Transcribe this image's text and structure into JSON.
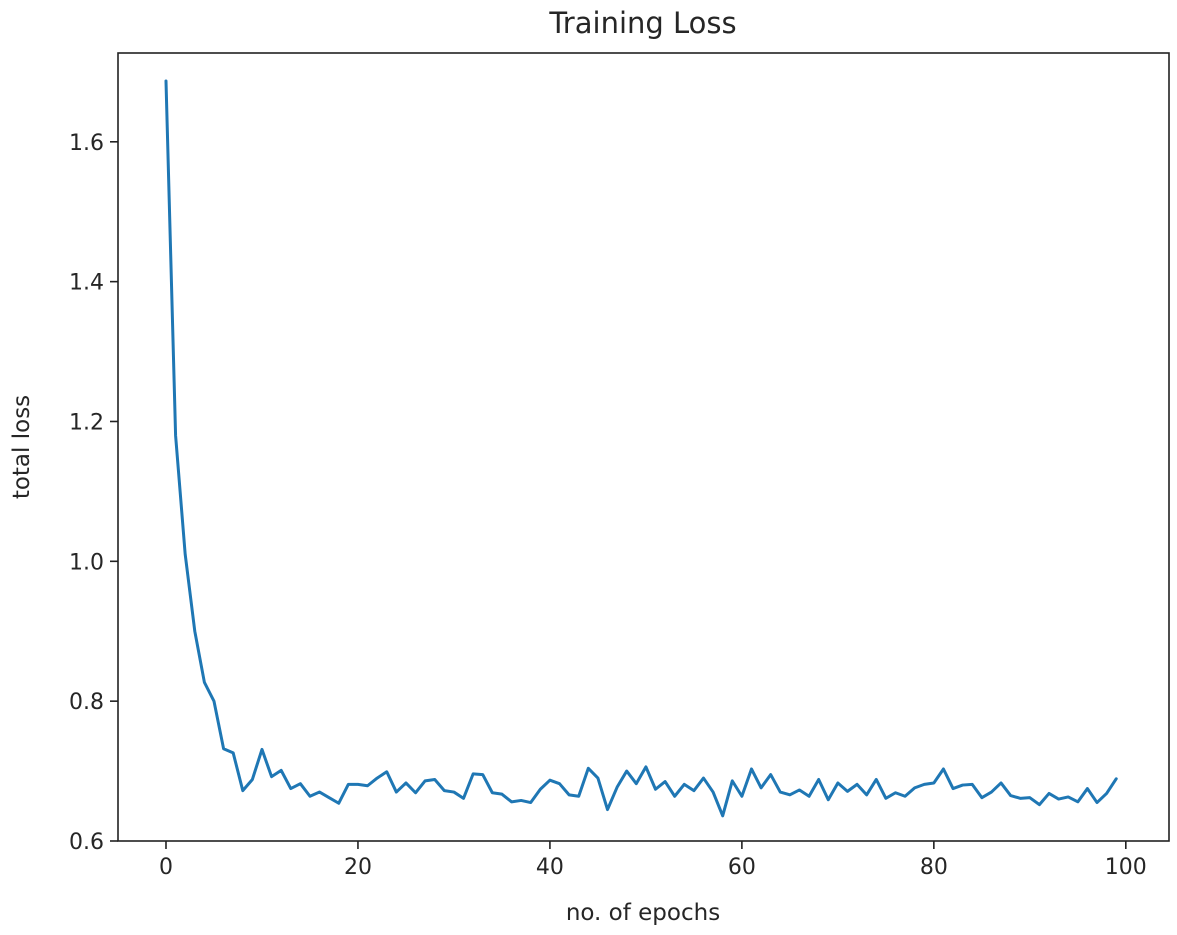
{
  "chart_data": {
    "type": "line",
    "title": "Training Loss",
    "xlabel": "no. of epochs",
    "ylabel": "total loss",
    "xlim": [
      -5,
      104.5
    ],
    "ylim": [
      0.6,
      1.727
    ],
    "xticks": [
      0,
      20,
      40,
      60,
      80,
      100
    ],
    "xtick_labels": [
      "0",
      "20",
      "40",
      "60",
      "80",
      "100"
    ],
    "yticks": [
      0.6,
      0.8,
      1.0,
      1.2,
      1.4,
      1.6
    ],
    "ytick_labels": [
      "0.6",
      "0.8",
      "1.0",
      "1.2",
      "1.4",
      "1.6"
    ],
    "grid": false,
    "series_color": "#1f77b4",
    "series": [
      {
        "x": [
          0,
          1,
          2,
          3,
          4,
          5,
          6,
          7,
          8,
          9,
          10,
          11,
          12,
          13,
          14,
          15,
          16,
          17,
          18,
          19,
          20,
          21,
          22,
          23,
          24,
          25,
          26,
          27,
          28,
          29,
          30,
          31,
          32,
          33,
          34,
          35,
          36,
          37,
          38,
          39,
          40,
          41,
          42,
          43,
          44,
          45,
          46,
          47,
          48,
          49,
          50,
          51,
          52,
          53,
          54,
          55,
          56,
          57,
          58,
          59,
          60,
          61,
          62,
          63,
          64,
          65,
          66,
          67,
          68,
          69,
          70,
          71,
          72,
          73,
          74,
          75,
          76,
          77,
          78,
          79,
          80,
          81,
          82,
          83,
          84,
          85,
          86,
          87,
          88,
          89,
          90,
          91,
          92,
          93,
          94,
          95,
          96,
          97,
          98,
          99
        ],
        "values": [
          1.687,
          1.18,
          1.01,
          0.9,
          0.827,
          0.8,
          0.732,
          0.726,
          0.672,
          0.688,
          0.731,
          0.692,
          0.701,
          0.675,
          0.682,
          0.664,
          0.67,
          0.662,
          0.654,
          0.681,
          0.681,
          0.679,
          0.69,
          0.699,
          0.67,
          0.683,
          0.669,
          0.686,
          0.688,
          0.672,
          0.67,
          0.661,
          0.696,
          0.695,
          0.669,
          0.667,
          0.656,
          0.658,
          0.655,
          0.674,
          0.687,
          0.682,
          0.666,
          0.664,
          0.704,
          0.69,
          0.645,
          0.677,
          0.7,
          0.682,
          0.706,
          0.674,
          0.685,
          0.664,
          0.681,
          0.672,
          0.69,
          0.67,
          0.636,
          0.686,
          0.664,
          0.703,
          0.676,
          0.695,
          0.67,
          0.666,
          0.673,
          0.664,
          0.688,
          0.659,
          0.683,
          0.671,
          0.681,
          0.666,
          0.688,
          0.661,
          0.669,
          0.664,
          0.676,
          0.681,
          0.683,
          0.703,
          0.675,
          0.68,
          0.681,
          0.662,
          0.67,
          0.683,
          0.665,
          0.661,
          0.662,
          0.652,
          0.668,
          0.66,
          0.663,
          0.656,
          0.675,
          0.655,
          0.668,
          0.689
        ]
      }
    ]
  }
}
